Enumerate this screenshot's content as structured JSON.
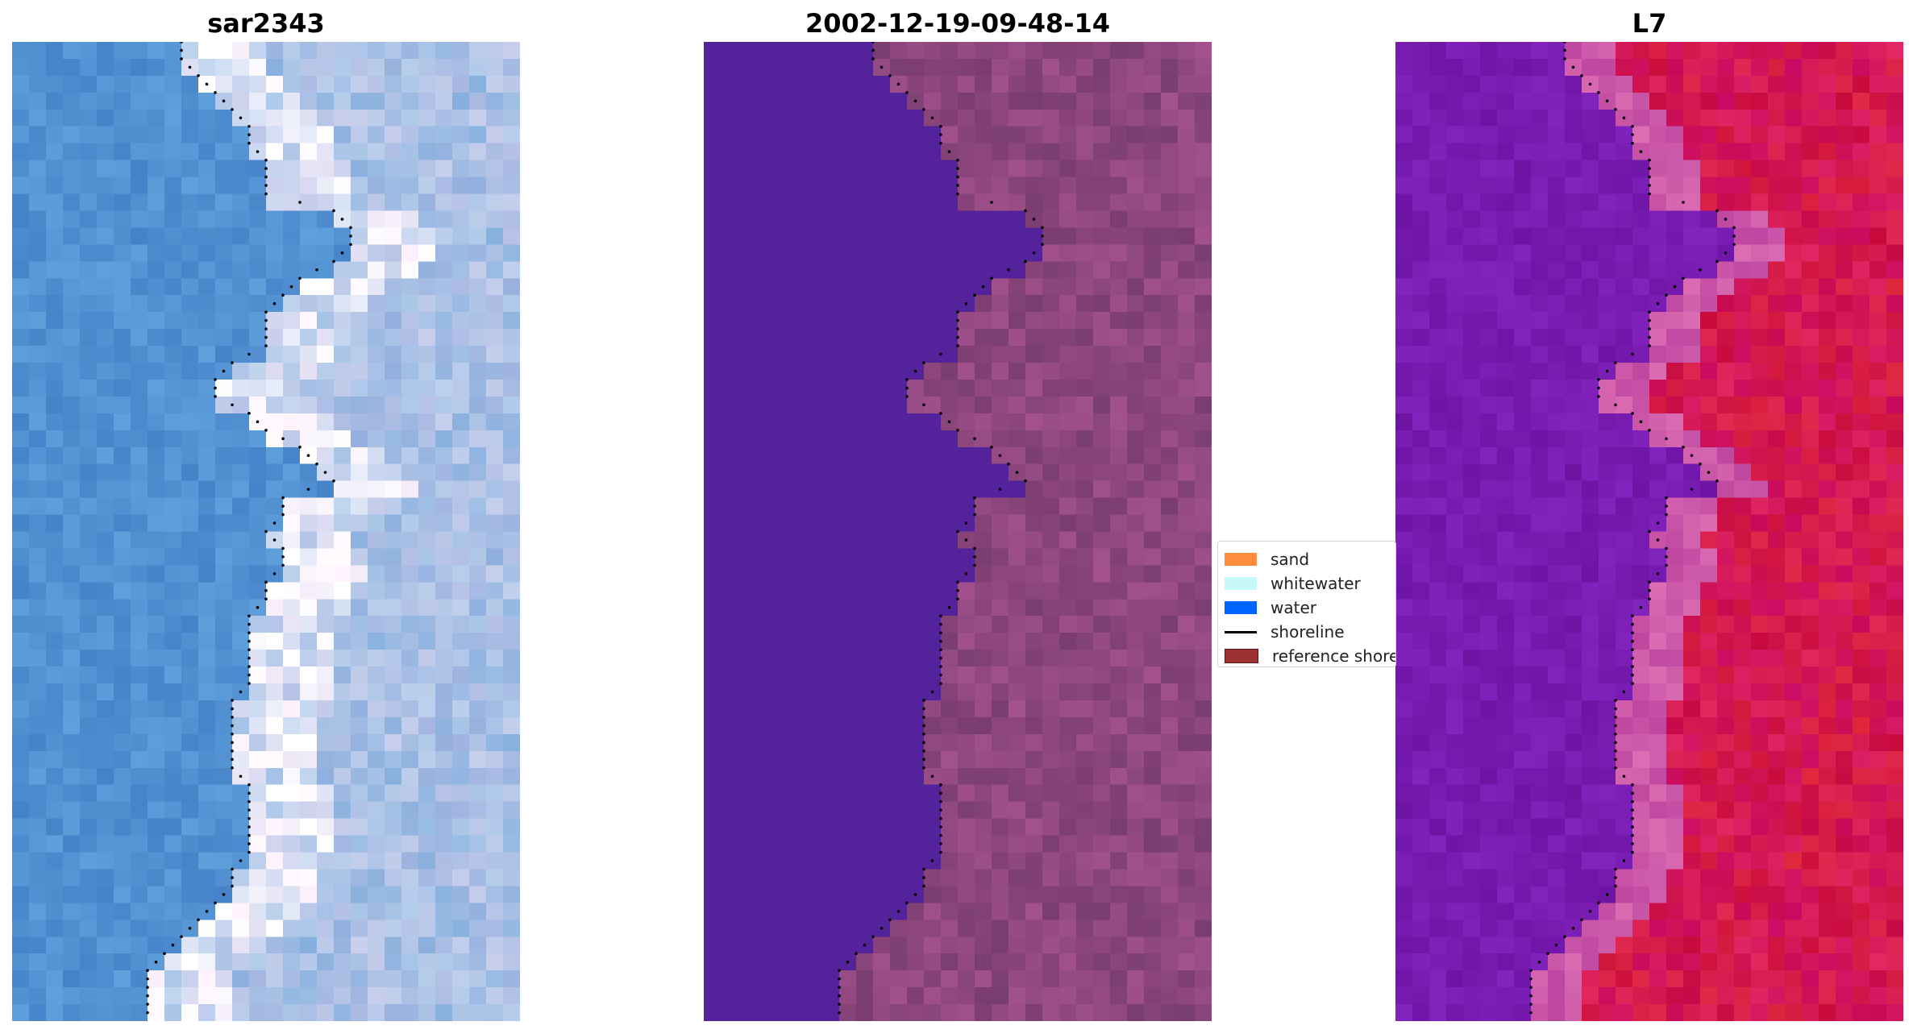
{
  "panels": [
    {
      "title": "sar2343",
      "palette": "rgb"
    },
    {
      "title": "2002-12-19-09-48-14",
      "palette": "classified"
    },
    {
      "title": "L7",
      "palette": "index"
    }
  ],
  "legend": {
    "items": [
      {
        "label": "sand",
        "color": "#ff8c3c",
        "kind": "patch"
      },
      {
        "label": "whitewater",
        "color": "#c8f8f8",
        "kind": "patch"
      },
      {
        "label": "water",
        "color": "#0064ff",
        "kind": "patch"
      },
      {
        "label": "shoreline",
        "color": "#000000",
        "kind": "line"
      },
      {
        "label": "reference shoreline",
        "color": "#9a3232",
        "kind": "patch",
        "edge": "#5a1414"
      }
    ]
  },
  "colors": {
    "water_classified": "#54229a",
    "land_classified": "#8e477e",
    "shoreline_dots": "#000000"
  }
}
